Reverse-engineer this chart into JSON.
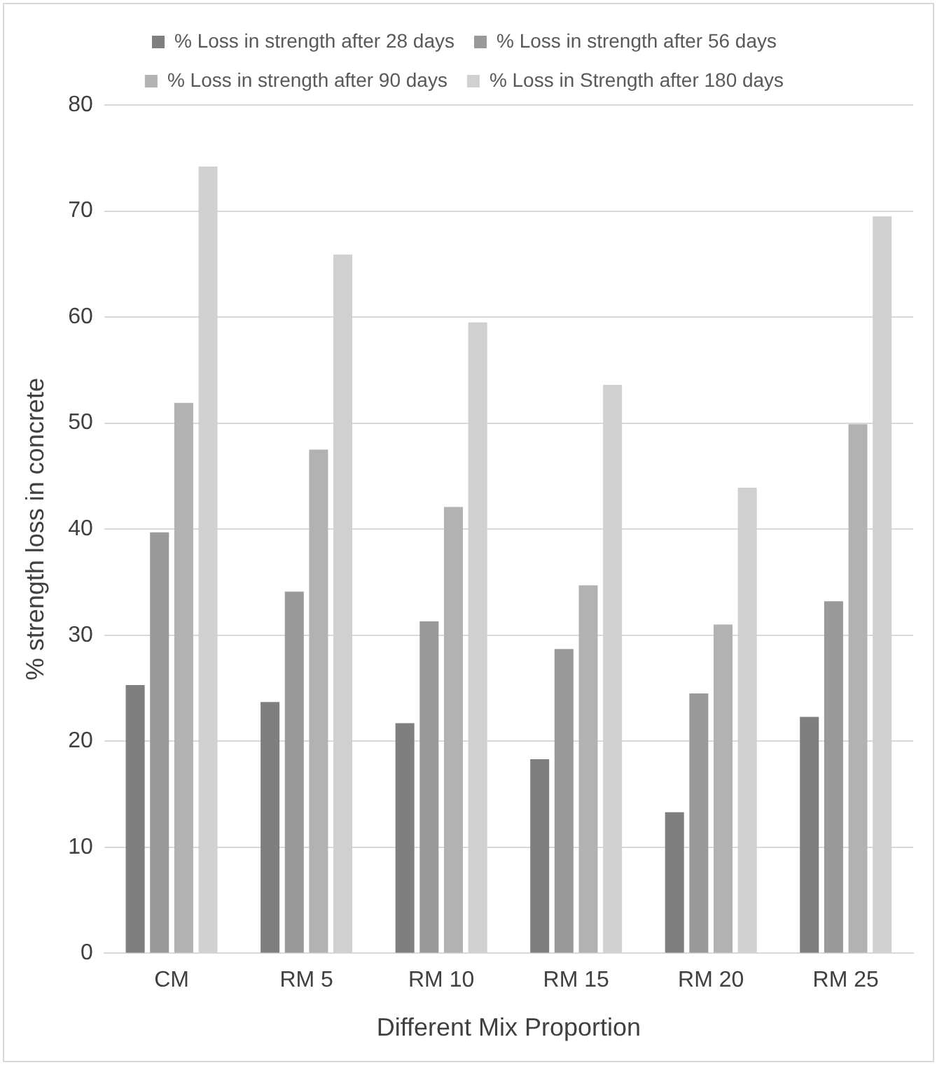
{
  "chart_data": {
    "type": "bar",
    "xlabel": "Different Mix Proportion",
    "ylabel": "% strength loss in concrete",
    "categories": [
      "CM",
      "RM 5",
      "RM 10",
      "RM 15",
      "RM 20",
      "RM 25"
    ],
    "series": [
      {
        "name": "% Loss in strength after 28 days",
        "color": "#7f7f7f",
        "values": [
          25.3,
          23.7,
          21.7,
          18.3,
          13.3,
          22.3
        ]
      },
      {
        "name": "% Loss in strength after 56 days",
        "color": "#999999",
        "values": [
          39.7,
          34.1,
          31.3,
          28.7,
          24.5,
          33.2
        ]
      },
      {
        "name": "% Loss in strength after 90 days",
        "color": "#b2b2b2",
        "values": [
          51.9,
          47.5,
          42.1,
          34.7,
          31.0,
          49.9
        ]
      },
      {
        "name": "% Loss in Strength after 180 days",
        "color": "#d0d0d0",
        "values": [
          74.2,
          65.9,
          59.5,
          53.6,
          43.9,
          69.5
        ]
      }
    ],
    "ylim": [
      0,
      80
    ],
    "yticks": [
      0,
      10,
      20,
      30,
      40,
      50,
      60,
      70,
      80
    ],
    "grid": "y",
    "legend": "top"
  }
}
